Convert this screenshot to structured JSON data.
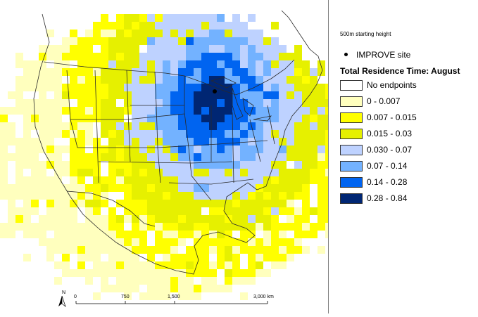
{
  "legend": {
    "subtitle": "500m starting height",
    "site_label": "IMPROVE site",
    "title": "Total Residence Time: August",
    "classes": [
      {
        "label": "No endpoints",
        "color": "#ffffff"
      },
      {
        "label": "0 - 0.007",
        "color": "#ffffbe"
      },
      {
        "label": "0.007 - 0.015",
        "color": "#ffff00"
      },
      {
        "label": "0.015 - 0.03",
        "color": "#e6f000"
      },
      {
        "label": "0.030 - 0.07",
        "color": "#bed2ff"
      },
      {
        "label": "0.07 - 0.14",
        "color": "#73b2ff"
      },
      {
        "label": "0.14 - 0.28",
        "color": "#0064f0"
      },
      {
        "label": "0.28 - 0.84",
        "color": "#002673"
      }
    ]
  },
  "scale_bar": {
    "labels": [
      "0",
      "750",
      "1,500",
      "3,000 km"
    ]
  },
  "north_label": "N"
}
